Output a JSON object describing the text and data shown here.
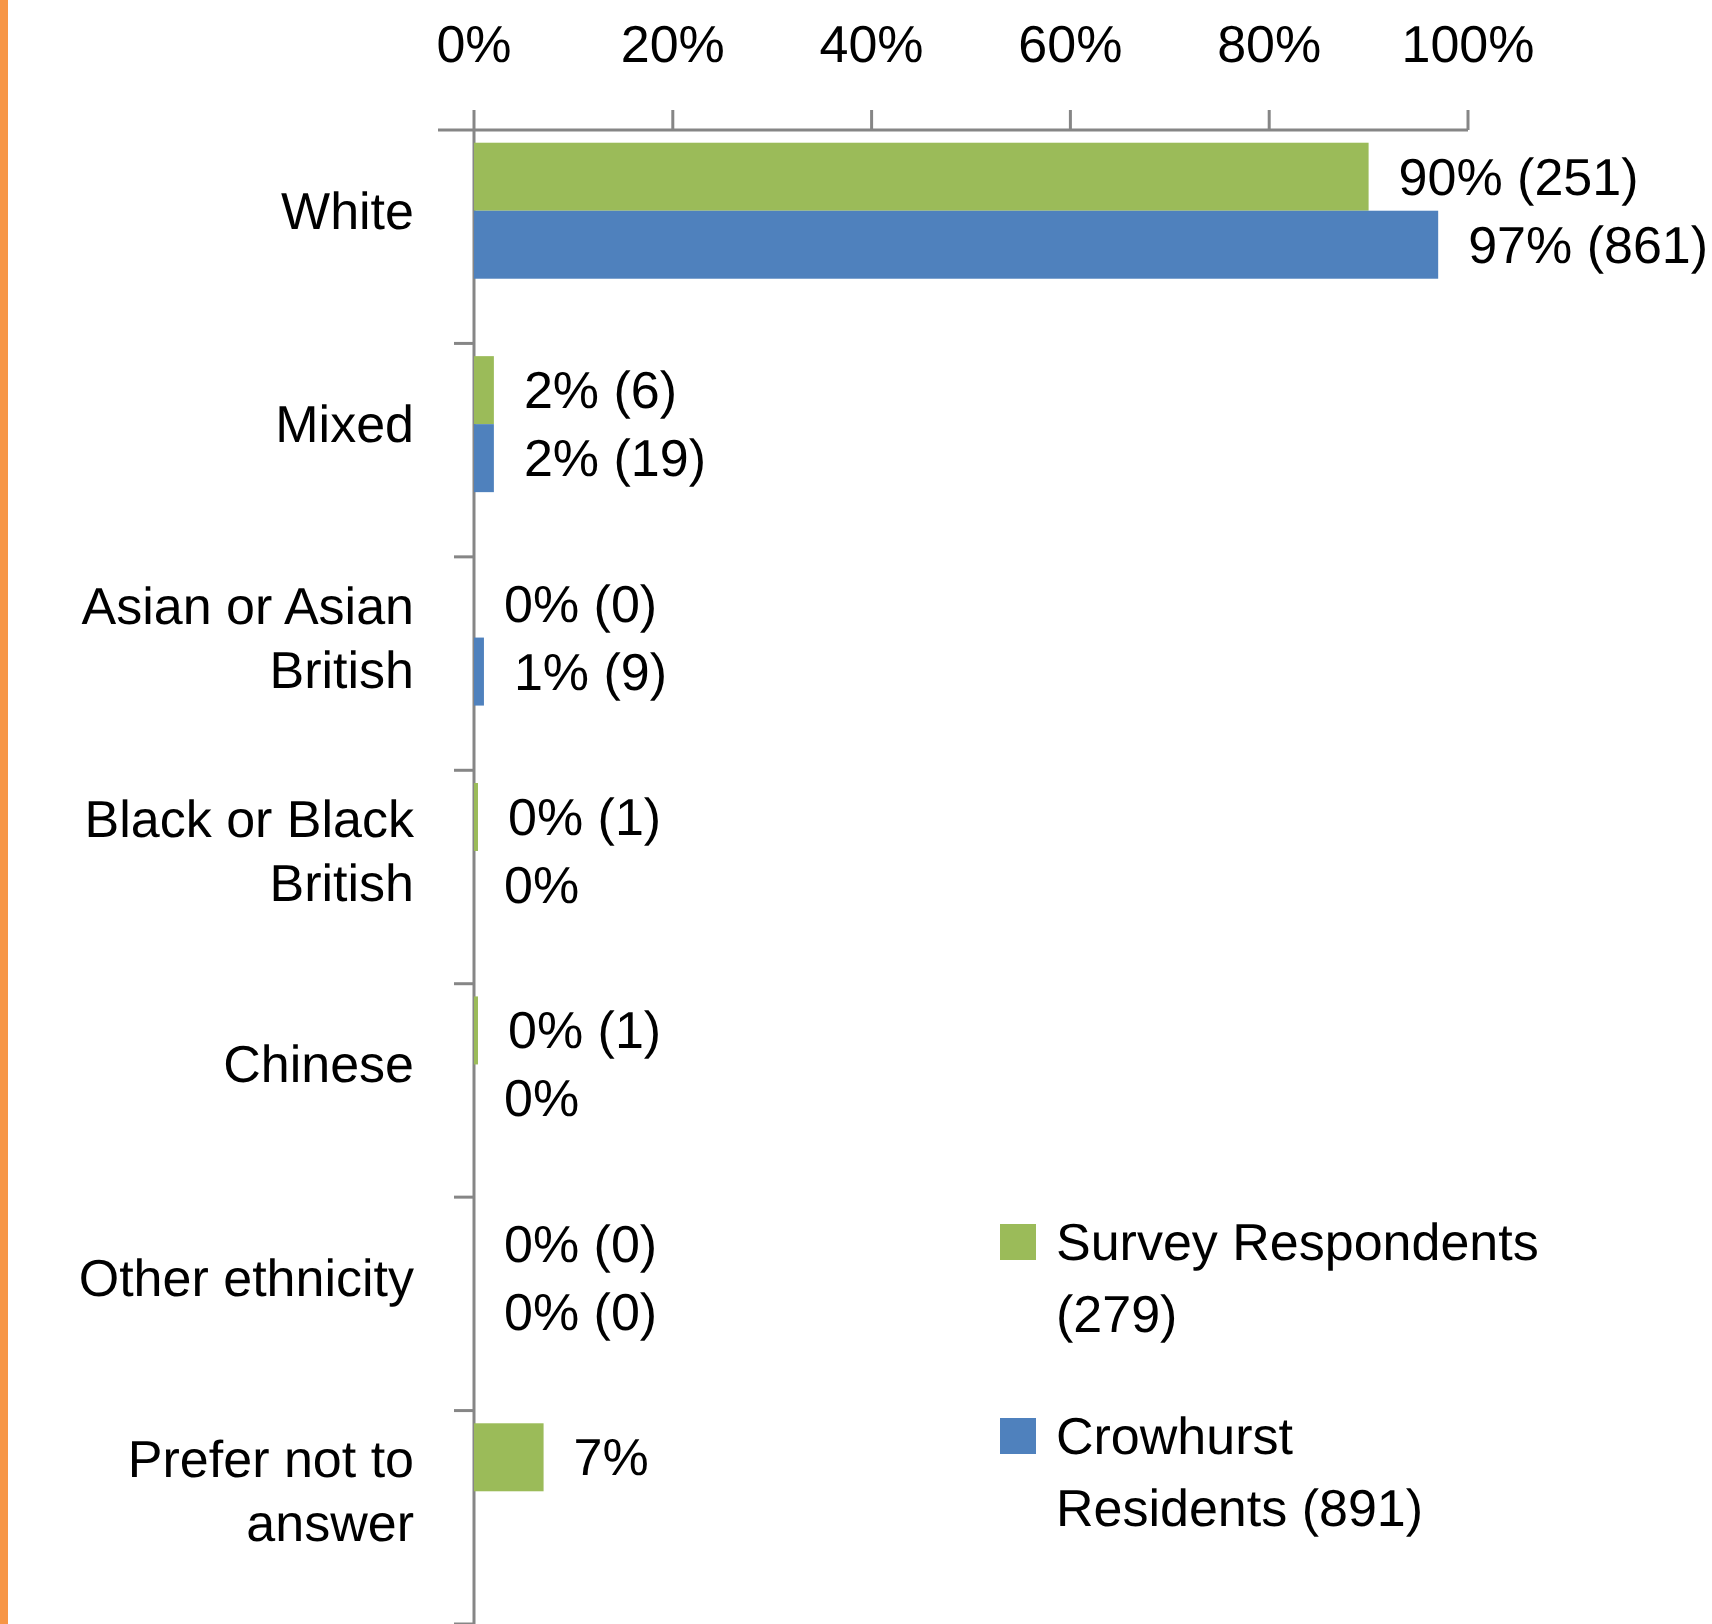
{
  "chart_data": {
    "type": "bar",
    "orientation": "horizontal",
    "categories": [
      "White",
      "Mixed",
      "Asian or Asian British",
      "Black or Black British",
      "Chinese",
      "Other ethnicity",
      "Prefer not to answer"
    ],
    "series": [
      {
        "name": "Survey Respondents (279)",
        "color": "#9bbb59",
        "values": [
          90,
          2,
          0,
          0.4,
          0.4,
          0,
          7
        ],
        "value_labels": [
          "90% (251)",
          "2% (6)",
          "0% (0)",
          "0% (1)",
          "0% (1)",
          "0% (0)",
          "7%"
        ]
      },
      {
        "name": "Crowhurst Residents (891)",
        "color": "#4f81bd",
        "values": [
          97,
          2,
          1,
          0,
          0,
          0,
          null
        ],
        "value_labels": [
          "97% (861)",
          "2% (19)",
          "1% (9)",
          "0%",
          "0%",
          "0% (0)",
          null
        ]
      }
    ],
    "xlim": [
      0,
      100
    ],
    "xticks": [
      {
        "value": 0,
        "label": "0%"
      },
      {
        "value": 20,
        "label": "20%"
      },
      {
        "value": 40,
        "label": "40%"
      },
      {
        "value": 60,
        "label": "60%"
      },
      {
        "value": 80,
        "label": "80%"
      },
      {
        "value": 100,
        "label": "100%"
      }
    ],
    "grid": false,
    "legend": "bottom right"
  }
}
